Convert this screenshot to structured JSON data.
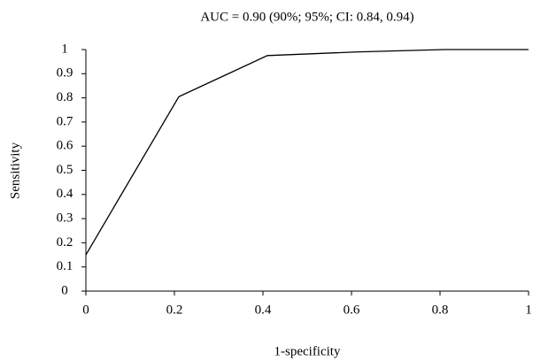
{
  "chart_data": {
    "type": "line",
    "title": "AUC = 0.90 (90%; 95%; CI: 0.84, 0.94)",
    "x_label": "1-specificity",
    "y_label": "Sensitivity",
    "x": [
      0,
      0.21,
      0.41,
      0.61,
      0.81,
      1
    ],
    "values": [
      0.15,
      0.805,
      0.975,
      0.99,
      1,
      1
    ],
    "color": "#000000",
    "xlim": [
      0,
      1
    ],
    "xticks": [
      0,
      0.2,
      0.4,
      0.6,
      0.8,
      1
    ],
    "ylim": [
      0,
      1
    ],
    "yticks": [
      0,
      0.1,
      0.2,
      0.3,
      0.4,
      0.5,
      0.6,
      0.7,
      0.8,
      0.9,
      1
    ],
    "grid": false
  }
}
